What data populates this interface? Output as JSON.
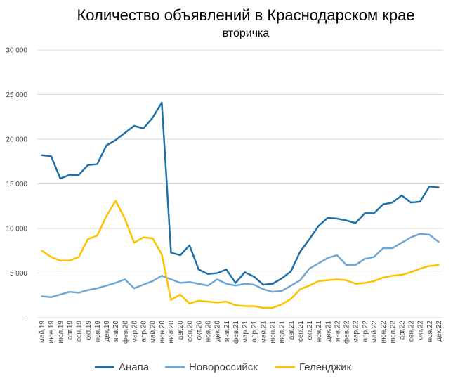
{
  "chart_data": {
    "type": "line",
    "title": "Количество объявлений в Краснодарском крае",
    "subtitle": "вторичка",
    "xlabel": "",
    "ylabel": "",
    "ylim": [
      0,
      30000
    ],
    "ytick_values": [
      0,
      5000,
      10000,
      15000,
      20000,
      25000,
      30000
    ],
    "ytick_labels": [
      "-",
      "5 000",
      "10 000",
      "15 000",
      "20 000",
      "25 000",
      "30 000"
    ],
    "grid": true,
    "legend_position": "bottom",
    "categories": [
      "май.19",
      "июн.19",
      "июл.19",
      "авг.19",
      "сен.19",
      "окт.19",
      "ноя.19",
      "дек.19",
      "янв.20",
      "фев.20",
      "мар.20",
      "апр.20",
      "май.20",
      "июн.20",
      "июл.20",
      "авг.20",
      "сен.20",
      "окт.20",
      "ноя.20",
      "дек.20",
      "янв.21",
      "фев.21",
      "мар.21",
      "апр.21",
      "май.21",
      "июн.21",
      "июл.21",
      "авг.21",
      "сен.21",
      "окт.21",
      "ноя.21",
      "дек.21",
      "янв.22",
      "фев.22",
      "мар.22",
      "апр.22",
      "май.22",
      "июн.22",
      "июл.22",
      "авг.22",
      "сен.22",
      "окт.22",
      "ноя.22",
      "дек.22"
    ],
    "series": [
      {
        "name": "Анапа",
        "color": "#1f6fa9",
        "values": [
          18200,
          18100,
          15600,
          16000,
          16000,
          17100,
          17200,
          19300,
          19900,
          20700,
          21500,
          21200,
          22400,
          24100,
          7300,
          7000,
          8100,
          5400,
          4900,
          5000,
          5400,
          3900,
          5100,
          4600,
          3700,
          3800,
          4400,
          5200,
          7400,
          8800,
          10300,
          11200,
          11100,
          10900,
          10600,
          11700,
          11700,
          12700,
          12900,
          13700,
          12900,
          13000,
          14700,
          14600
        ]
      },
      {
        "name": "Новороссийск",
        "color": "#6ea6d6",
        "values": [
          2400,
          2300,
          2600,
          2900,
          2800,
          3100,
          3300,
          3600,
          3900,
          4300,
          3300,
          3700,
          4100,
          4700,
          4300,
          3900,
          4000,
          3800,
          3600,
          4300,
          3800,
          3600,
          3800,
          3700,
          3200,
          2900,
          3000,
          3600,
          4200,
          5500,
          6100,
          6700,
          7000,
          5900,
          5900,
          6600,
          6800,
          7800,
          7800,
          8400,
          9000,
          9400,
          9300,
          8500
        ]
      },
      {
        "name": "Геленджик",
        "color": "#ffc000",
        "values": [
          7500,
          6800,
          6400,
          6400,
          6800,
          8800,
          9200,
          11400,
          13100,
          11100,
          8400,
          9000,
          8900,
          7100,
          2000,
          2600,
          1600,
          1900,
          1800,
          1700,
          1800,
          1400,
          1300,
          1300,
          1100,
          1100,
          1500,
          2100,
          3200,
          3600,
          4100,
          4200,
          4300,
          4200,
          3800,
          3900,
          4100,
          4500,
          4700,
          4800,
          5100,
          5500,
          5800,
          5900
        ]
      }
    ]
  }
}
